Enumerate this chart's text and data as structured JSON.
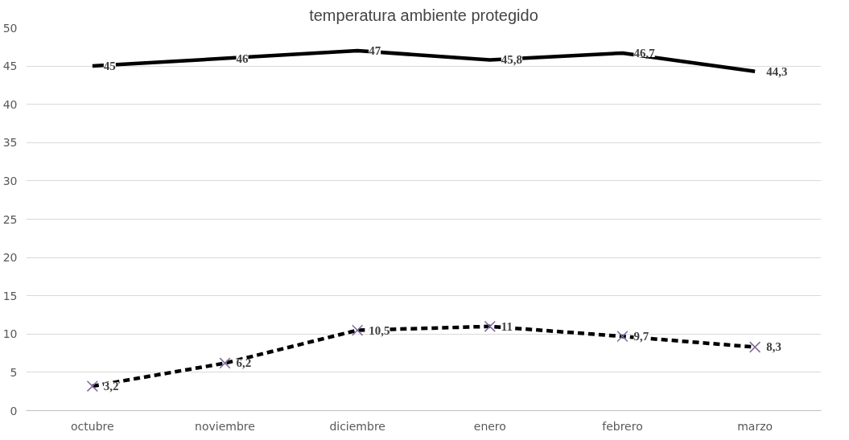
{
  "chart_data": {
    "type": "line",
    "title": "temperatura ambiente protegido",
    "categories": [
      "octubre",
      "noviembre",
      "diciembre",
      "enero",
      "febrero",
      "marzo"
    ],
    "series": [
      {
        "color": "#000000",
        "values": [
          45,
          46,
          47,
          45.8,
          46.7,
          44.3
        ],
        "value_labels": [
          "45",
          "46",
          "47",
          "45,8",
          "46,7",
          "44,3"
        ],
        "marker": "none",
        "line_style": "solid"
      },
      {
        "color": "#000000",
        "values": [
          3.2,
          6.2,
          10.5,
          11,
          9.7,
          8.3
        ],
        "value_labels": [
          "3,2",
          "6,2",
          "10,5",
          "11",
          "9,7",
          "8,3"
        ],
        "marker": "cross",
        "line_style": "dashed"
      }
    ],
    "ylim": [
      0,
      50
    ],
    "yticks": [
      0,
      5,
      10,
      15,
      20,
      25,
      30,
      35,
      40,
      45,
      50
    ],
    "grid": "y"
  }
}
